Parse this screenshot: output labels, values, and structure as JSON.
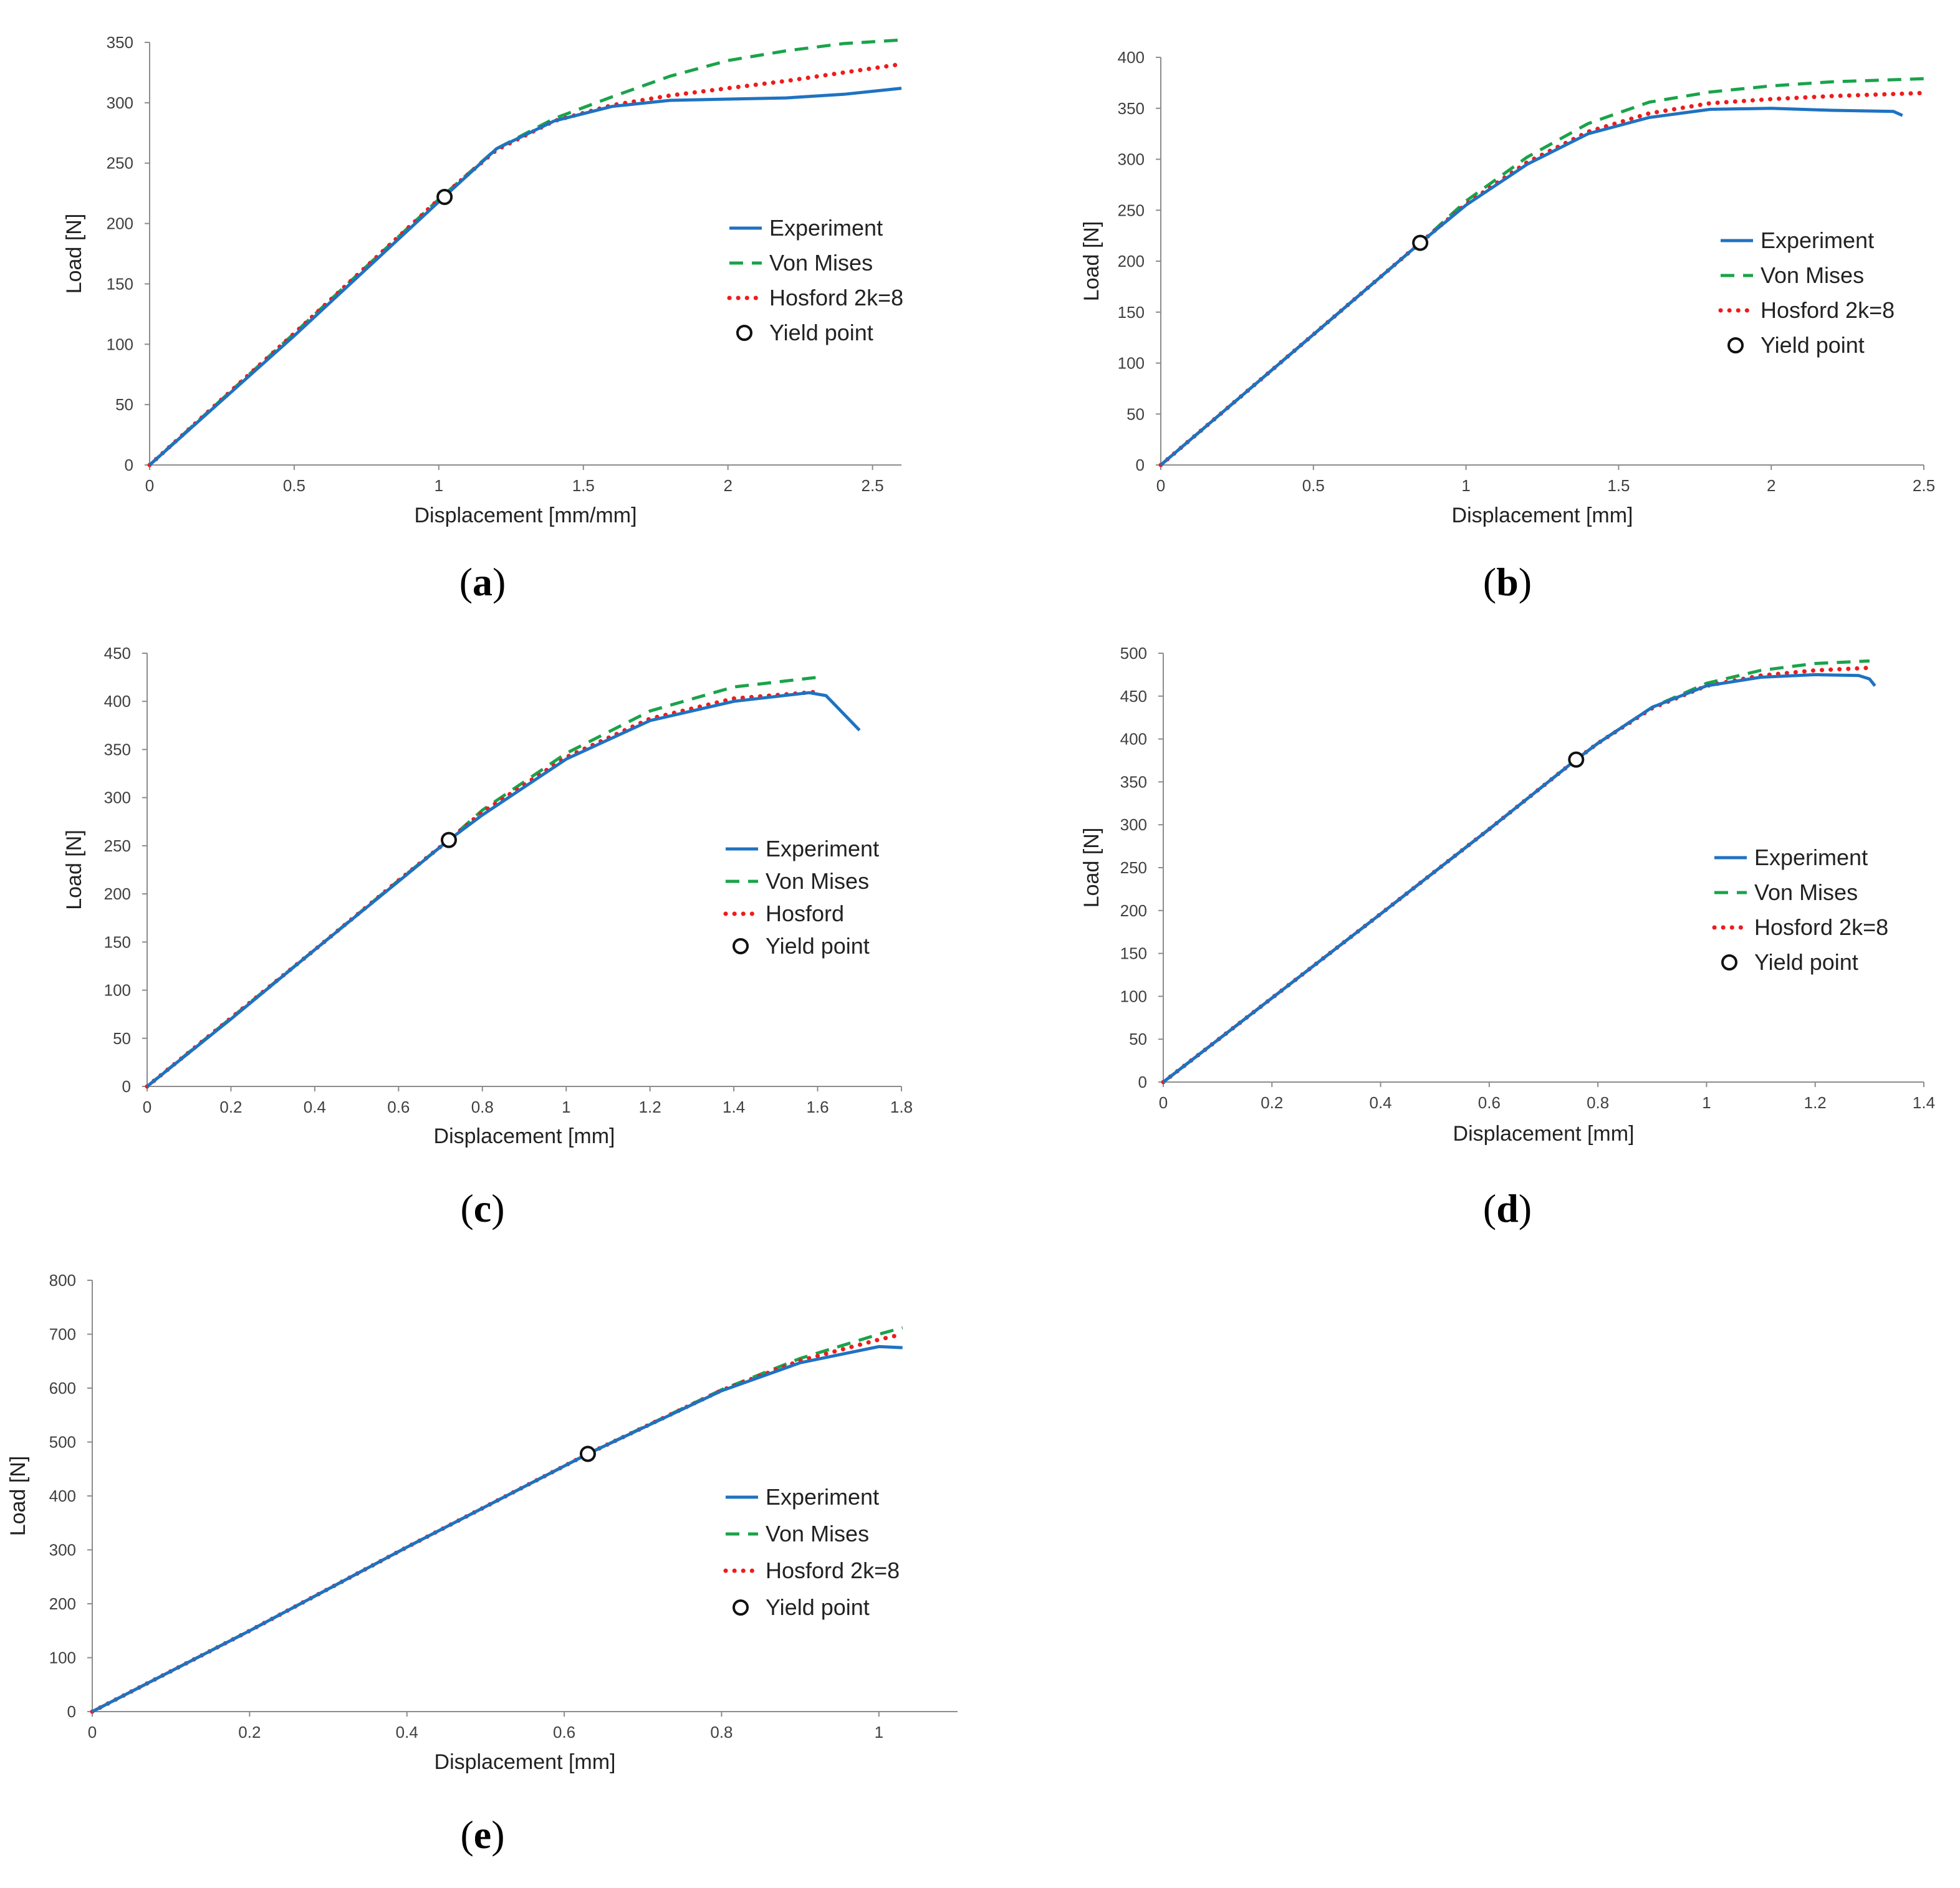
{
  "series_styles": {
    "experiment": {
      "color": "#1f72c1",
      "dash": ""
    },
    "von_mises": {
      "color": "#1aa34a",
      "dash": "dashed"
    },
    "hosford": {
      "color": "#ee1c1c",
      "dash": "dotted"
    }
  },
  "chart_data": [
    {
      "id": "a",
      "type": "line",
      "caption": {
        "open": "(",
        "letter": "a",
        "close": ")"
      },
      "xlabel": "Displacement [mm/mm]",
      "ylabel": "Load [N]",
      "xlim": [
        0,
        2.6
      ],
      "ylim": [
        0,
        350
      ],
      "xticks": [
        0,
        0.5,
        1,
        1.5,
        2,
        2.5
      ],
      "xtick_labels": [
        "0",
        "0.5",
        "1",
        "1.5",
        "2",
        "2.5"
      ],
      "yticks": [
        0,
        50,
        100,
        150,
        200,
        250,
        300,
        350
      ],
      "ytick_labels": [
        "0",
        "50",
        "100",
        "150",
        "200",
        "250",
        "300",
        "350"
      ],
      "legend": [
        "Experiment",
        "Von Mises",
        "Hosford 2k=8",
        "Yield point"
      ],
      "series": [
        {
          "name": "Experiment",
          "style": "experiment",
          "x": [
            0,
            0.5,
            1.0,
            1.2,
            1.4,
            1.6,
            1.8,
            2.0,
            2.2,
            2.4,
            2.6
          ],
          "y": [
            0,
            107,
            218,
            262,
            285,
            297,
            302,
            303,
            304,
            307,
            312
          ]
        },
        {
          "name": "Von Mises",
          "style": "von_mises",
          "x": [
            0,
            0.5,
            1.0,
            1.2,
            1.4,
            1.6,
            1.8,
            2.0,
            2.2,
            2.4,
            2.6
          ],
          "y": [
            0,
            109,
            220,
            262,
            287,
            305,
            322,
            335,
            343,
            349,
            352
          ]
        },
        {
          "name": "Hosford 2k=8",
          "style": "hosford",
          "x": [
            0,
            0.5,
            1.0,
            1.2,
            1.4,
            1.6,
            1.8,
            2.0,
            2.2,
            2.4,
            2.6
          ],
          "y": [
            0,
            109,
            220,
            261,
            285,
            298,
            306,
            312,
            318,
            325,
            332
          ]
        }
      ],
      "yield_point": {
        "x": 1.02,
        "y": 222
      }
    },
    {
      "id": "b",
      "type": "line",
      "caption": {
        "open": "(",
        "letter": "b",
        "close": ")"
      },
      "xlabel": "Displacement [mm]",
      "ylabel": "Load [N]",
      "xlim": [
        0,
        2.5
      ],
      "ylim": [
        0,
        400
      ],
      "xticks": [
        0,
        0.5,
        1,
        1.5,
        2,
        2.5
      ],
      "xtick_labels": [
        "0",
        "0.5",
        "1",
        "1.5",
        "2",
        "2.5"
      ],
      "yticks": [
        0,
        50,
        100,
        150,
        200,
        250,
        300,
        350,
        400
      ],
      "ytick_labels": [
        "0",
        "50",
        "100",
        "150",
        "200",
        "250",
        "300",
        "350",
        "400"
      ],
      "legend": [
        "Experiment",
        "Von Mises",
        "Hosford 2k=8",
        "Yield point"
      ],
      "series": [
        {
          "name": "Experiment",
          "style": "experiment",
          "x": [
            0,
            0.5,
            0.85,
            1.0,
            1.2,
            1.4,
            1.6,
            1.8,
            2.0,
            2.2,
            2.4,
            2.43
          ],
          "y": [
            0,
            128,
            218,
            255,
            295,
            325,
            341,
            349,
            350,
            348,
            347,
            343
          ]
        },
        {
          "name": "Von Mises",
          "style": "von_mises",
          "x": [
            0,
            0.5,
            0.85,
            1.0,
            1.2,
            1.4,
            1.6,
            1.8,
            2.0,
            2.2,
            2.5
          ],
          "y": [
            0,
            128,
            218,
            259,
            302,
            335,
            356,
            366,
            372,
            376,
            379
          ]
        },
        {
          "name": "Hosford 2k=8",
          "style": "hosford",
          "x": [
            0,
            0.5,
            0.85,
            1.0,
            1.2,
            1.4,
            1.6,
            1.8,
            2.0,
            2.2,
            2.5
          ],
          "y": [
            0,
            128,
            218,
            256,
            297,
            327,
            345,
            355,
            359,
            362,
            365
          ]
        }
      ],
      "yield_point": {
        "x": 0.85,
        "y": 218
      }
    },
    {
      "id": "c",
      "type": "line",
      "caption": {
        "open": "(",
        "letter": "c",
        "close": ")"
      },
      "xlabel": "Displacement [mm]",
      "ylabel": "Load [N]",
      "xlim": [
        0,
        1.8
      ],
      "ylim": [
        0,
        450
      ],
      "xticks": [
        0,
        0.2,
        0.4,
        0.6,
        0.8,
        1,
        1.2,
        1.4,
        1.6,
        1.8
      ],
      "xtick_labels": [
        "0",
        "0.2",
        "0.4",
        "0.6",
        "0.8",
        "1",
        "1.2",
        "1.4",
        "1.6",
        "1.8"
      ],
      "yticks": [
        0,
        50,
        100,
        150,
        200,
        250,
        300,
        350,
        400,
        450
      ],
      "ytick_labels": [
        "0",
        "50",
        "100",
        "150",
        "200",
        "250",
        "300",
        "350",
        "400",
        "450"
      ],
      "legend": [
        "Experiment",
        "Von Mises",
        "Hosford",
        "Yield point"
      ],
      "series": [
        {
          "name": "Experiment",
          "style": "experiment",
          "x": [
            0,
            0.2,
            0.4,
            0.6,
            0.72,
            0.8,
            1.0,
            1.2,
            1.4,
            1.58,
            1.62,
            1.7
          ],
          "y": [
            0,
            70,
            142,
            213,
            256,
            282,
            340,
            380,
            400,
            409,
            406,
            370
          ]
        },
        {
          "name": "Von Mises",
          "style": "von_mises",
          "x": [
            0,
            0.2,
            0.4,
            0.6,
            0.72,
            0.8,
            1.0,
            1.2,
            1.4,
            1.6
          ],
          "y": [
            0,
            71,
            142,
            214,
            256,
            287,
            346,
            390,
            415,
            425
          ]
        },
        {
          "name": "Hosford",
          "style": "hosford",
          "x": [
            0,
            0.2,
            0.4,
            0.6,
            0.72,
            0.8,
            1.0,
            1.2,
            1.4,
            1.6
          ],
          "y": [
            0,
            71,
            142,
            214,
            256,
            285,
            342,
            382,
            403,
            410
          ]
        }
      ],
      "yield_point": {
        "x": 0.72,
        "y": 256
      }
    },
    {
      "id": "d",
      "type": "line",
      "caption": {
        "open": "(",
        "letter": "d",
        "close": ")"
      },
      "xlabel": "Displacement [mm]",
      "ylabel": "Load [N]",
      "xlim": [
        0,
        1.4
      ],
      "ylim": [
        0,
        500
      ],
      "xticks": [
        0,
        0.2,
        0.4,
        0.6,
        0.8,
        1,
        1.2,
        1.4
      ],
      "xtick_labels": [
        "0",
        "0.2",
        "0.4",
        "0.6",
        "0.8",
        "1",
        "1.2",
        "1.4"
      ],
      "yticks": [
        0,
        50,
        100,
        150,
        200,
        250,
        300,
        350,
        400,
        450,
        500
      ],
      "ytick_labels": [
        "0",
        "50",
        "100",
        "150",
        "200",
        "250",
        "300",
        "350",
        "400",
        "450",
        "500"
      ],
      "legend": [
        "Experiment",
        "Von Mises",
        "Hosford 2k=8",
        "Yield point"
      ],
      "series": [
        {
          "name": "Experiment",
          "style": "experiment",
          "x": [
            0,
            0.2,
            0.4,
            0.6,
            0.76,
            0.8,
            0.9,
            1.0,
            1.1,
            1.2,
            1.28,
            1.3,
            1.31
          ],
          "y": [
            0,
            98,
            196,
            295,
            376,
            395,
            437,
            462,
            472,
            475,
            474,
            470,
            462
          ]
        },
        {
          "name": "Von Mises",
          "style": "von_mises",
          "x": [
            0,
            0.2,
            0.4,
            0.6,
            0.76,
            0.8,
            0.9,
            1.0,
            1.1,
            1.2,
            1.3
          ],
          "y": [
            0,
            98,
            196,
            295,
            376,
            395,
            437,
            465,
            480,
            488,
            491
          ]
        },
        {
          "name": "Hosford 2k=8",
          "style": "hosford",
          "x": [
            0,
            0.2,
            0.4,
            0.6,
            0.76,
            0.8,
            0.9,
            1.0,
            1.1,
            1.2,
            1.3
          ],
          "y": [
            0,
            98,
            196,
            295,
            376,
            395,
            436,
            462,
            474,
            480,
            483
          ]
        }
      ],
      "yield_point": {
        "x": 0.76,
        "y": 376
      }
    },
    {
      "id": "e",
      "type": "line",
      "caption": {
        "open": "(",
        "letter": "e",
        "close": ")"
      },
      "xlabel": "Displacement [mm]",
      "ylabel": "Load [N]",
      "xlim": [
        0,
        1.1
      ],
      "ylim": [
        0,
        800
      ],
      "xticks": [
        0,
        0.2,
        0.4,
        0.6,
        0.8,
        1
      ],
      "xtick_labels": [
        "0",
        "0.2",
        "0.4",
        "0.6",
        "0.8",
        "1"
      ],
      "yticks": [
        0,
        100,
        200,
        300,
        400,
        500,
        600,
        700,
        800
      ],
      "ytick_labels": [
        "0",
        "100",
        "200",
        "300",
        "400",
        "500",
        "600",
        "700",
        "800"
      ],
      "legend": [
        "Experiment",
        "Von Mises",
        "Hosford 2k=8",
        "Yield point"
      ],
      "series": [
        {
          "name": "Experiment",
          "style": "experiment",
          "x": [
            0,
            0.2,
            0.4,
            0.63,
            0.8,
            0.9,
            1.0,
            1.03
          ],
          "y": [
            0,
            150,
            305,
            478,
            595,
            647,
            677,
            675
          ]
        },
        {
          "name": "Von Mises",
          "style": "von_mises",
          "x": [
            0,
            0.2,
            0.4,
            0.63,
            0.8,
            0.9,
            1.0,
            1.03
          ],
          "y": [
            0,
            150,
            305,
            478,
            597,
            655,
            700,
            712
          ]
        },
        {
          "name": "Hosford 2k=8",
          "style": "hosford",
          "x": [
            0,
            0.2,
            0.4,
            0.63,
            0.8,
            0.9,
            1.0,
            1.03
          ],
          "y": [
            0,
            150,
            305,
            478,
            596,
            651,
            690,
            700
          ]
        }
      ],
      "yield_point": {
        "x": 0.63,
        "y": 478
      }
    }
  ]
}
